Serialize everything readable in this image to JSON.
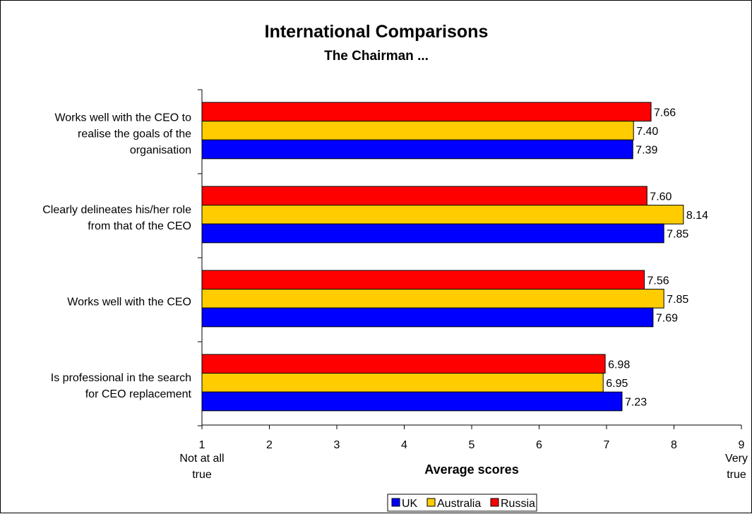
{
  "chart_data": {
    "type": "bar",
    "orientation": "horizontal",
    "title": "International Comparisons",
    "subtitle": "The Chairman ...",
    "xlabel": "Average scores",
    "xlim": [
      1,
      9
    ],
    "x_ticks": [
      "1",
      "2",
      "3",
      "4",
      "5",
      "6",
      "7",
      "8",
      "9"
    ],
    "x_end_labels": {
      "low": [
        "Not at all",
        "true"
      ],
      "high": [
        "Very",
        "true"
      ]
    },
    "categories": [
      [
        "Works well with the CEO to",
        "realise the goals of the",
        "organisation"
      ],
      [
        "Clearly delineates his/her role",
        "from that of the CEO"
      ],
      [
        "Works well with the CEO"
      ],
      [
        "Is professional in the search",
        "for CEO replacement"
      ]
    ],
    "series": [
      {
        "name": "Russia",
        "color": "#ff0000",
        "values": [
          7.66,
          7.6,
          7.56,
          6.98
        ],
        "labels": [
          "7.66",
          "7.60",
          "7.56",
          "6.98"
        ]
      },
      {
        "name": "Australia",
        "color": "#ffcc00",
        "values": [
          7.4,
          8.14,
          7.85,
          6.95
        ],
        "labels": [
          "7.40",
          "8.14",
          "7.85",
          "6.95"
        ]
      },
      {
        "name": "UK",
        "color": "#0000ff",
        "values": [
          7.39,
          7.85,
          7.69,
          7.23
        ],
        "labels": [
          "7.39",
          "7.85",
          "7.69",
          "7.23"
        ]
      }
    ],
    "legend": {
      "placement": "bottom",
      "order": [
        "UK",
        "Australia",
        "Russia"
      ]
    },
    "grid": false
  }
}
